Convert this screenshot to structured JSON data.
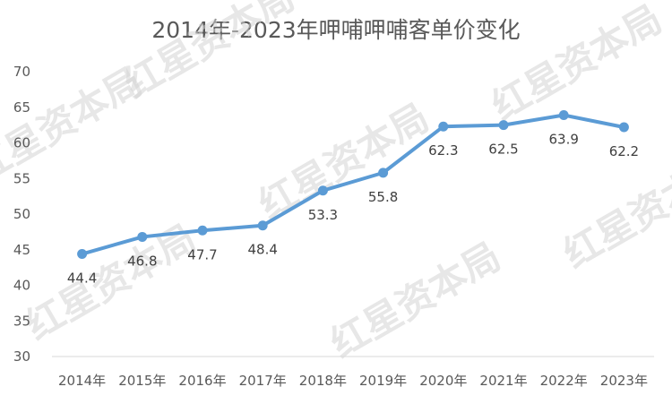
{
  "chart_data": {
    "type": "line",
    "title": "2014年-2023年呷哺呷哺客单价变化",
    "categories": [
      "2014年",
      "2015年",
      "2016年",
      "2017年",
      "2018年",
      "2019年",
      "2020年",
      "2021年",
      "2022年",
      "2023年"
    ],
    "series": [
      {
        "values": [
          44.4,
          46.8,
          47.7,
          48.4,
          53.3,
          55.8,
          62.3,
          62.5,
          63.9,
          62.2
        ]
      }
    ],
    "data_labels": [
      "44.4",
      "46.8",
      "47.7",
      "48.4",
      "53.3",
      "55.8",
      "62.3",
      "62.5",
      "63.9",
      "62.2"
    ],
    "ylim": [
      30,
      70
    ],
    "yticks": [
      "30",
      "35",
      "40",
      "45",
      "50",
      "55",
      "60",
      "65",
      "70"
    ],
    "xlabel": "",
    "ylabel": "",
    "grid": false,
    "line_color": "#5b9bd5"
  },
  "watermark": "红星资本局"
}
